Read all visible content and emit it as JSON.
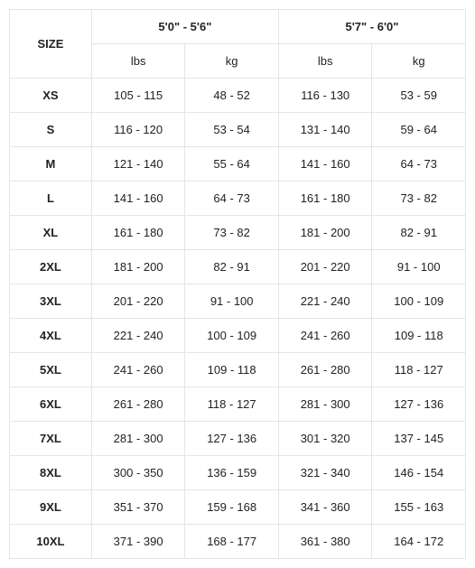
{
  "table": {
    "type": "table",
    "border_color": "#e5e5e5",
    "background_color": "#ffffff",
    "text_color": "#222222",
    "font_size_pt": 10,
    "size_header": "SIZE",
    "height_groups": [
      "5'0\" - 5'6\"",
      "5'7\" - 6'0\""
    ],
    "units": [
      "lbs",
      "kg"
    ],
    "sizes": [
      "XS",
      "S",
      "M",
      "L",
      "XL",
      "2XL",
      "3XL",
      "4XL",
      "5XL",
      "6XL",
      "7XL",
      "8XL",
      "9XL",
      "10XL"
    ],
    "rows": [
      [
        "105 - 115",
        "48 - 52",
        "116 - 130",
        "53 - 59"
      ],
      [
        "116 - 120",
        "53 - 54",
        "131 - 140",
        "59 - 64"
      ],
      [
        "121 - 140",
        "55 - 64",
        "141 - 160",
        "64 - 73"
      ],
      [
        "141 - 160",
        "64 - 73",
        "161 - 180",
        "73 - 82"
      ],
      [
        "161 - 180",
        "73 - 82",
        "181 - 200",
        "82 - 91"
      ],
      [
        "181 - 200",
        "82 - 91",
        "201 - 220",
        "91 - 100"
      ],
      [
        "201 - 220",
        "91 - 100",
        "221 - 240",
        "100 - 109"
      ],
      [
        "221 - 240",
        "100 - 109",
        "241 - 260",
        "109 - 118"
      ],
      [
        "241 - 260",
        "109 - 118",
        "261 - 280",
        "118 - 127"
      ],
      [
        "261 - 280",
        "118 - 127",
        "281 - 300",
        "127 - 136"
      ],
      [
        "281 - 300",
        "127 - 136",
        "301 - 320",
        "137 - 145"
      ],
      [
        "300 - 350",
        "136 - 159",
        "321 - 340",
        "146 - 154"
      ],
      [
        "351 - 370",
        "159 - 168",
        "341 - 360",
        "155 - 163"
      ],
      [
        "371 - 390",
        "168 - 177",
        "361 - 380",
        "164 - 172"
      ]
    ]
  }
}
